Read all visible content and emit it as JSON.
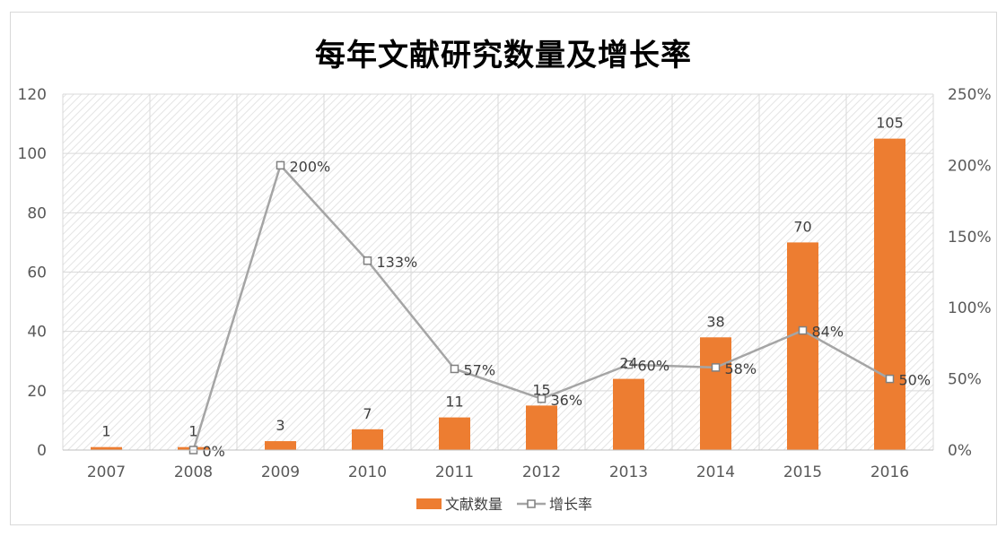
{
  "chart_data": {
    "type": "bar+line",
    "title": "每年文献研究数量及增长率",
    "categories": [
      "2007",
      "2008",
      "2009",
      "2010",
      "2011",
      "2012",
      "2013",
      "2014",
      "2015",
      "2016"
    ],
    "series": [
      {
        "name": "文献数量",
        "type": "bar",
        "axis": "left",
        "values": [
          1,
          1,
          3,
          7,
          11,
          15,
          24,
          38,
          70,
          105
        ],
        "labels": [
          "1",
          "1",
          "3",
          "7",
          "11",
          "15",
          "24",
          "38",
          "70",
          "105"
        ],
        "color": "#ED7D31"
      },
      {
        "name": "增长率",
        "type": "line",
        "axis": "right",
        "values": [
          null,
          0,
          200,
          133,
          57,
          36,
          60,
          58,
          84,
          50
        ],
        "labels": [
          "",
          "0%",
          "200%",
          "133%",
          "57%",
          "36%",
          "60%",
          "58%",
          "84%",
          "50%"
        ],
        "color": "#A5A5A5"
      }
    ],
    "y_left": {
      "min": 0,
      "max": 120,
      "ticks": [
        0,
        20,
        40,
        60,
        80,
        100,
        120
      ],
      "tick_labels": [
        "0",
        "20",
        "40",
        "60",
        "80",
        "100",
        "120"
      ]
    },
    "y_right": {
      "min": 0,
      "max": 250,
      "ticks": [
        0,
        50,
        100,
        150,
        200,
        250
      ],
      "tick_labels": [
        "0%",
        "50%",
        "100%",
        "150%",
        "200%",
        "250%"
      ]
    },
    "grid": true,
    "legend": "bottom"
  }
}
